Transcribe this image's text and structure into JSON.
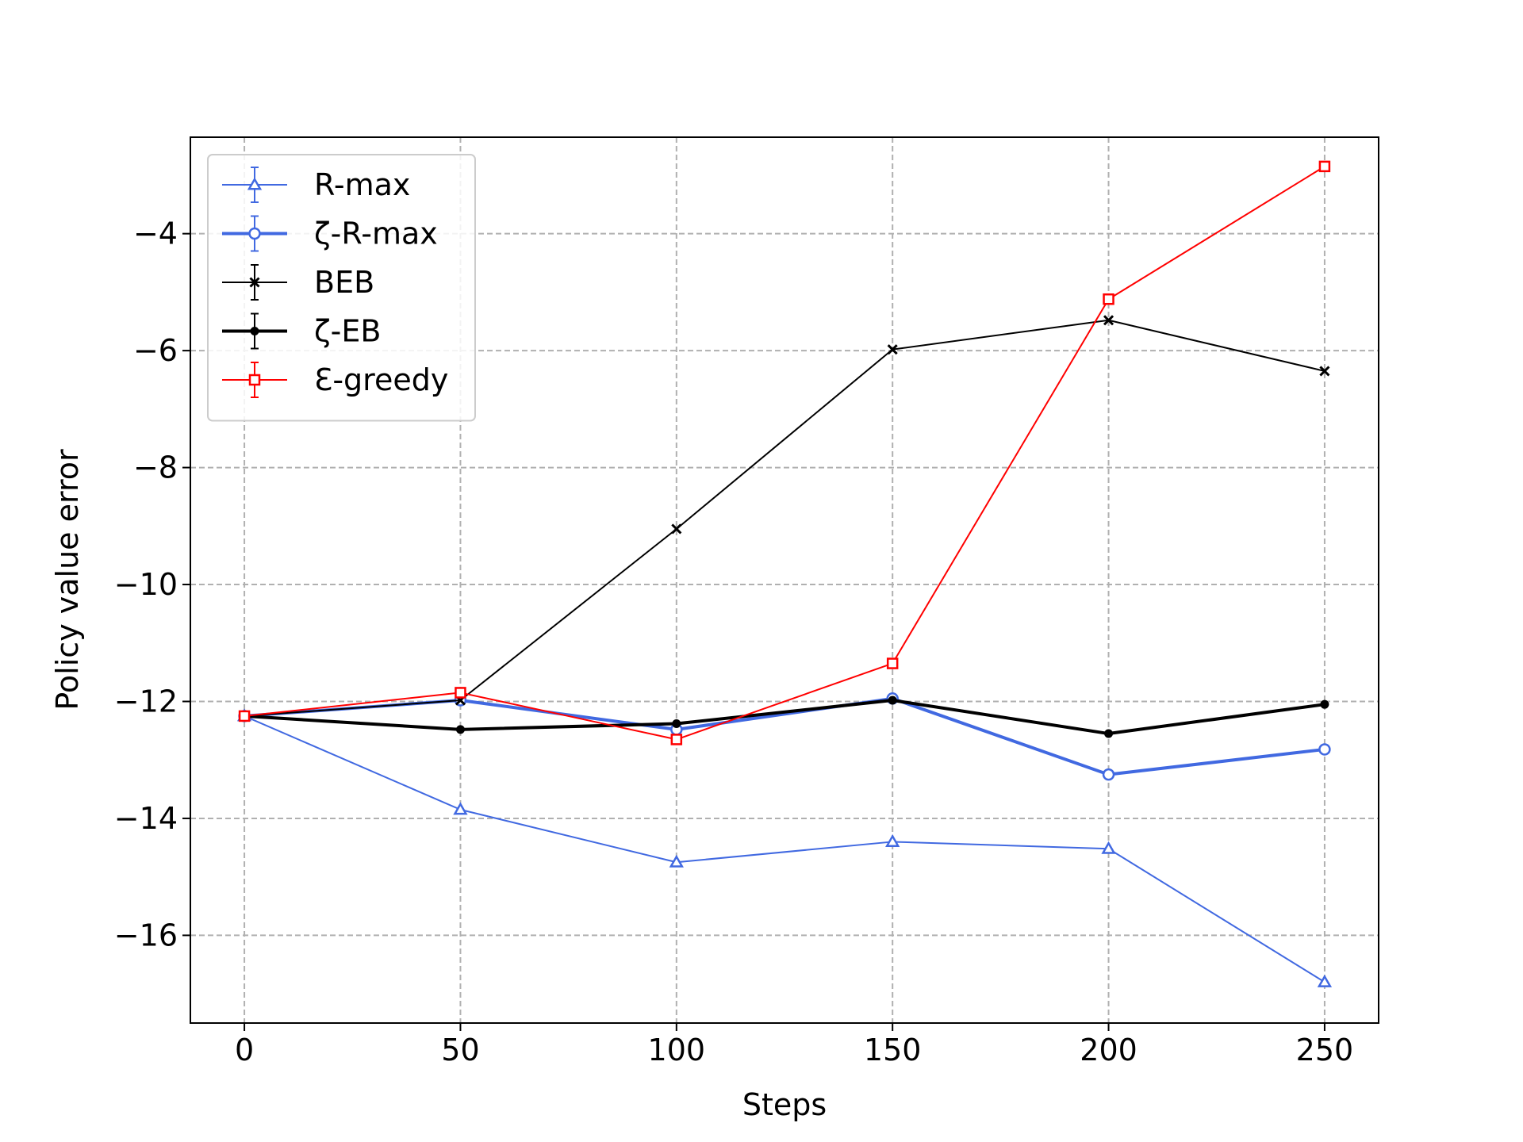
{
  "chart_data": {
    "type": "line",
    "xlabel": "Steps",
    "ylabel": "Policy value error",
    "x": [
      0,
      50,
      100,
      150,
      200,
      250
    ],
    "xlim": [
      -12.5,
      262.5
    ],
    "ylim": [
      -17.5,
      -2.35
    ],
    "xticks": [
      0,
      50,
      100,
      150,
      200,
      250
    ],
    "yticks": [
      -16,
      -14,
      -12,
      -10,
      -8,
      -6,
      -4
    ],
    "xtick_labels": [
      "0",
      "50",
      "100",
      "150",
      "200",
      "250"
    ],
    "ytick_labels": [
      "−16",
      "−14",
      "−12",
      "−10",
      "−8",
      "−6",
      "−4"
    ],
    "grid": true,
    "legend_position": "top-left",
    "series": [
      {
        "name": "R-max",
        "color": "#4169E1",
        "marker": "triangle",
        "linewidth": "thin",
        "values": [
          -12.25,
          -13.85,
          -14.75,
          -14.4,
          -14.52,
          -16.8
        ]
      },
      {
        "name": "ζ-R-max",
        "color": "#4169E1",
        "marker": "circle",
        "linewidth": "thick",
        "values": [
          -12.25,
          -11.98,
          -12.48,
          -11.95,
          -13.25,
          -12.82
        ]
      },
      {
        "name": "BEB",
        "color": "#000000",
        "marker": "x",
        "linewidth": "thin",
        "values": [
          -12.25,
          -11.98,
          -9.05,
          -5.98,
          -5.48,
          -6.35
        ]
      },
      {
        "name": "ζ-EB",
        "color": "#000000",
        "marker": "dot",
        "linewidth": "thick",
        "values": [
          -12.25,
          -12.48,
          -12.38,
          -11.98,
          -12.55,
          -12.05
        ]
      },
      {
        "name": "Ɛ-greedy",
        "color": "#FF0000",
        "marker": "square",
        "linewidth": "thin",
        "values": [
          -12.25,
          -11.85,
          -12.65,
          -11.35,
          -5.12,
          -2.85
        ]
      }
    ]
  }
}
